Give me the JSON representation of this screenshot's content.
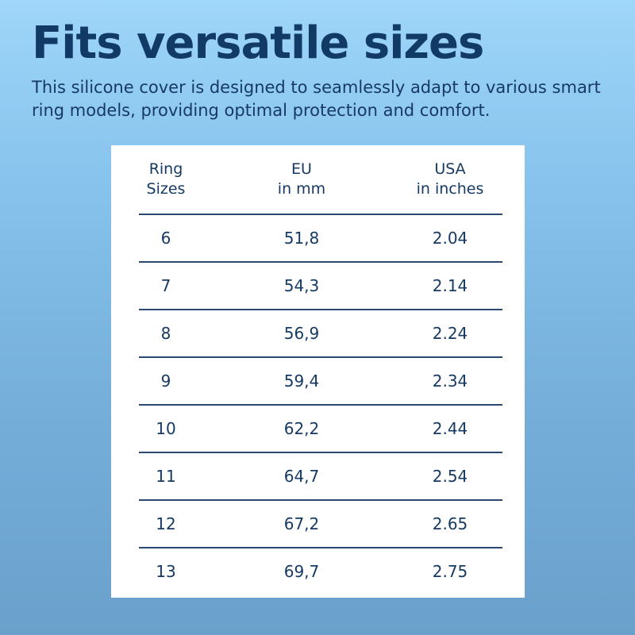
{
  "header": {
    "title": "Fits versatile sizes",
    "subtitle": "This silicone cover is designed to seamlessly adapt to various smart ring models, providing optimal protection and comfort."
  },
  "table": {
    "columns": [
      {
        "line1": "Ring",
        "line2": "Sizes"
      },
      {
        "line1": "EU",
        "line2": "in mm"
      },
      {
        "line1": "USA",
        "line2": "in inches"
      }
    ],
    "rows": [
      {
        "ring": "6",
        "eu": "51,8",
        "usa": "2.04"
      },
      {
        "ring": "7",
        "eu": "54,3",
        "usa": "2.14"
      },
      {
        "ring": "8",
        "eu": "56,9",
        "usa": "2.24"
      },
      {
        "ring": "9",
        "eu": "59,4",
        "usa": "2.34"
      },
      {
        "ring": "10",
        "eu": "62,2",
        "usa": "2.44"
      },
      {
        "ring": "11",
        "eu": "64,7",
        "usa": "2.54"
      },
      {
        "ring": "12",
        "eu": "67,2",
        "usa": "2.65"
      },
      {
        "ring": "13",
        "eu": "69,7",
        "usa": "2.75"
      }
    ]
  }
}
